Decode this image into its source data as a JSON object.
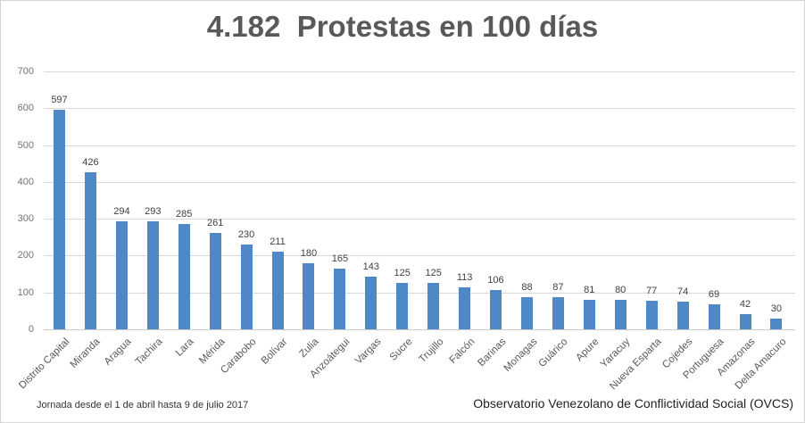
{
  "title": "4.182  Protestas en 100 días",
  "footer": {
    "left": "Jornada desde el 1 de abril hasta 9 de julio 2017",
    "right": "Observatorio Venezolano de Conflictividad Social (OVCS)"
  },
  "colors": {
    "bar": "#4E88C6",
    "gridline": "#D9D9D9",
    "axis_line": "#C9C9C9",
    "title_text": "#595959",
    "axis_text": "#737373",
    "value_text": "#404040",
    "footer_text": "#1F1F1F"
  },
  "chart_data": {
    "type": "bar",
    "title": "4.182  Protestas en 100 días",
    "categories": [
      "Distrito Capital",
      "Miranda",
      "Aragua",
      "Tachira",
      "Lara",
      "Mérida",
      "Carabobo",
      "Bolívar",
      "Zulia",
      "Anzoátegui",
      "Vargas",
      "Sucre",
      "Trujillo",
      "Falcón",
      "Barinas",
      "Monagas",
      "Guárico",
      "Apure",
      "Yaracuy",
      "Nueva Esparta",
      "Cojedes",
      "Portuguesa",
      "Amazonas",
      "Delta Amacuro"
    ],
    "values": [
      597,
      426,
      294,
      293,
      285,
      261,
      230,
      211,
      180,
      165,
      143,
      125,
      125,
      113,
      106,
      88,
      87,
      81,
      80,
      77,
      74,
      69,
      42,
      30
    ],
    "total_label": "4.182",
    "xlabel": "",
    "ylabel": "",
    "ylim": [
      0,
      700
    ],
    "y_ticks": [
      0,
      100,
      200,
      300,
      400,
      500,
      600,
      700
    ],
    "grid": "horizontal",
    "legend": "none",
    "data_labels": true,
    "bar_color": "#4E88C6"
  }
}
